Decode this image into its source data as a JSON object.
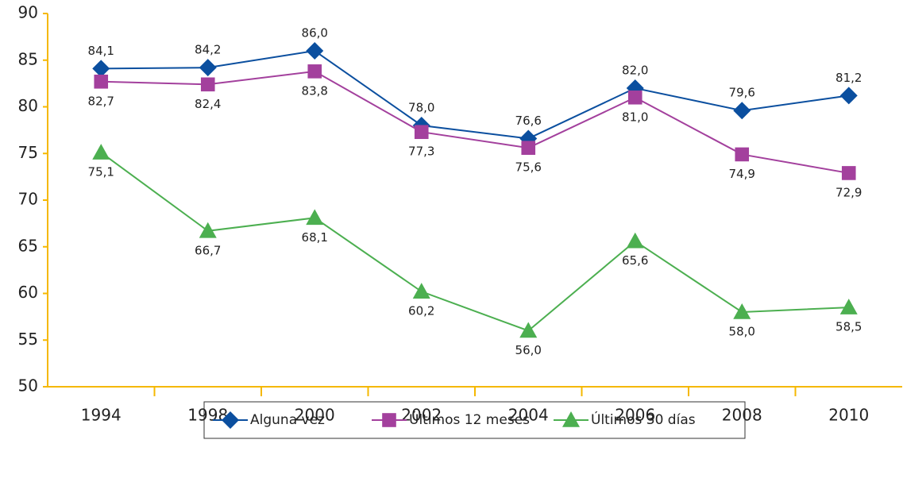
{
  "chart_data": {
    "type": "line",
    "categories": [
      "1994",
      "1998",
      "2000",
      "2002",
      "2004",
      "2006",
      "2008",
      "2010"
    ],
    "ylim": [
      50,
      90
    ],
    "yticks": [
      50,
      55,
      60,
      65,
      70,
      75,
      80,
      85,
      90
    ],
    "axis_color": "#f5b800",
    "series": [
      {
        "name": "Alguna vez",
        "color": "#0b4f9f",
        "marker": "diamond",
        "label_position": "above",
        "values": [
          84.1,
          84.2,
          86.0,
          78.0,
          76.6,
          82.0,
          79.6,
          81.2
        ],
        "value_labels": [
          "84,1",
          "84,2",
          "86,0",
          "78,0",
          "76,6",
          "82,0",
          "79,6",
          "81,2"
        ]
      },
      {
        "name": "Últimos 12 meses",
        "color": "#a3409d",
        "marker": "square",
        "label_position": "below",
        "values": [
          82.7,
          82.4,
          83.8,
          77.3,
          75.6,
          81.0,
          74.9,
          72.9
        ],
        "value_labels": [
          "82,7",
          "82,4",
          "83,8",
          "77,3",
          "75,6",
          "81,0",
          "74,9",
          "72,9"
        ]
      },
      {
        "name": "Últimos 30 días",
        "color": "#4caf50",
        "marker": "triangle",
        "label_position": "below",
        "values": [
          75.1,
          66.7,
          68.1,
          60.2,
          56.0,
          65.6,
          58.0,
          58.5
        ],
        "value_labels": [
          "75,1",
          "66,7",
          "68,1",
          "60,2",
          "56,0",
          "65,6",
          "58,0",
          "58,5"
        ]
      }
    ]
  }
}
